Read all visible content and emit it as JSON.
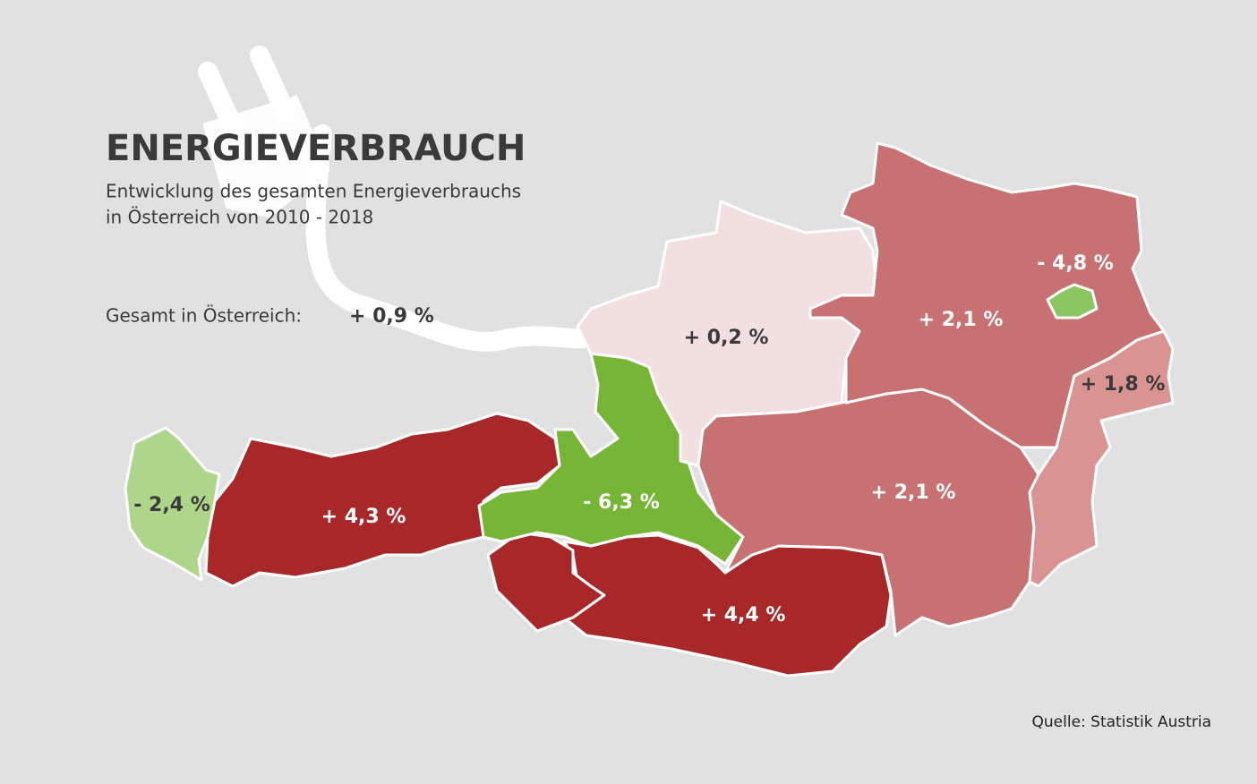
{
  "header": {
    "title": "ENERGIEVERBRAUCH",
    "subtitle_lines": [
      "Entwicklung des gesamten Energieverbrauchs",
      "in Österreich von 2010 - 2018"
    ]
  },
  "total": {
    "label": "Gesamt in Österreich:",
    "value": "+ 0,9 %"
  },
  "regions": [
    {
      "label": "- 2,4 %",
      "color": "#aed68a",
      "text_color": "#3a3a3a"
    },
    {
      "label": "+ 4,3 %",
      "color": "#a8282a",
      "text_color": "#ffffff"
    },
    {
      "label": "- 6,3 %",
      "color": "#76b536",
      "text_color": "#ffffff"
    },
    {
      "label": "+ 4,4 %",
      "color": "#a8282a",
      "text_color": "#ffffff"
    },
    {
      "label": "+ 0,2 %",
      "color": "#f2dfe0",
      "text_color": "#3a3a3a"
    },
    {
      "label": "+ 2,1 %",
      "color": "#c87172",
      "text_color": "#ffffff"
    },
    {
      "label": "+ 2,1 %",
      "color": "#c87172",
      "text_color": "#ffffff"
    },
    {
      "label": "- 4,8 %",
      "color": "#8cc660",
      "text_color": "#ffffff"
    },
    {
      "label": "+ 1,8 %",
      "color": "#d99393",
      "text_color": "#3a3a3a"
    }
  ],
  "source": "Quelle: Statistik Austria"
}
